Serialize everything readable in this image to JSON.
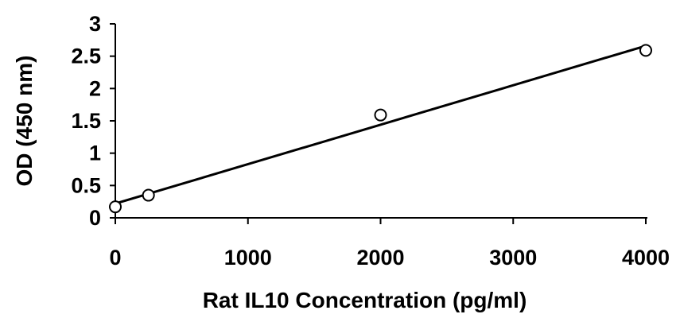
{
  "chart_data": {
    "type": "scatter",
    "title": "",
    "xlabel": "Rat IL10 Concentration (pg/ml)",
    "ylabel": "OD (450 nm)",
    "xlim": [
      0,
      4000
    ],
    "ylim": [
      0,
      3
    ],
    "x_ticks": [
      0,
      1000,
      2000,
      3000,
      4000
    ],
    "x_tick_labels": [
      "0",
      "1000",
      "2000",
      "3000",
      "4000"
    ],
    "y_ticks": [
      0,
      0.5,
      1,
      1.5,
      2,
      2.5,
      3
    ],
    "y_tick_labels": [
      "0",
      "0.5",
      "1",
      "1.5",
      "2",
      "2.5",
      "3"
    ],
    "grid": false,
    "legend": "none",
    "series": [
      {
        "x": [
          0,
          250,
          2000,
          4000
        ],
        "y": [
          0.17,
          0.35,
          1.59,
          2.59
        ],
        "marker": "open-circle",
        "color": "#000000"
      }
    ],
    "trendline": {
      "type": "linear",
      "x": [
        0,
        4000
      ],
      "y": [
        0.22,
        2.66
      ],
      "color": "#000000"
    }
  }
}
